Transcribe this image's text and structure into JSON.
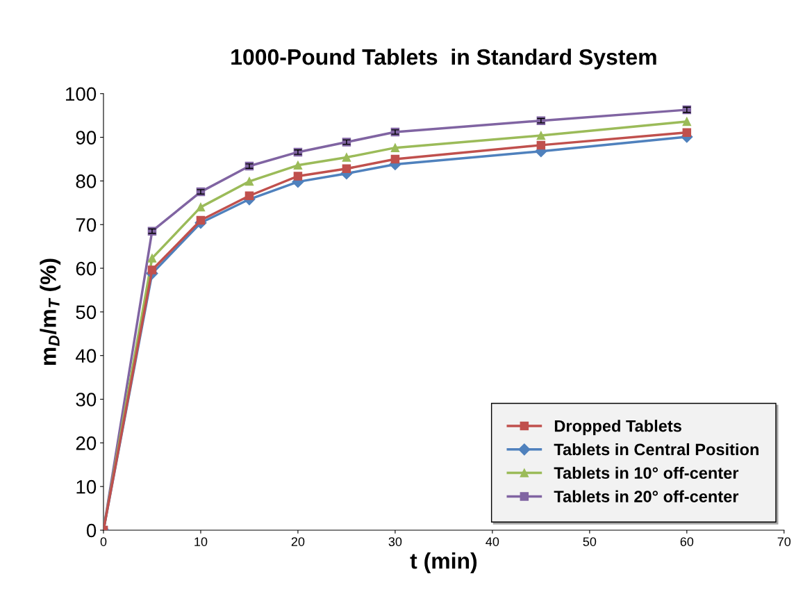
{
  "chart_data": {
    "type": "line",
    "title": "1000-Pound Tablets  in Standard System",
    "xlabel": "t (min)",
    "ylabel": "m$_{D}$/m$_{T}$ (%)",
    "x": [
      0,
      5,
      10,
      15,
      20,
      25,
      30,
      45,
      60
    ],
    "series": [
      {
        "name": "Dropped Tablets",
        "color": "#c0504d",
        "marker": "square",
        "values": [
          0,
          59.6,
          71.0,
          76.6,
          81.1,
          82.8,
          85.0,
          88.2,
          91.1
        ]
      },
      {
        "name": "Tablets in Central Position",
        "color": "#4f81bd",
        "marker": "diamond",
        "values": [
          0,
          58.8,
          70.4,
          75.8,
          79.8,
          81.7,
          83.8,
          86.8,
          90.1
        ]
      },
      {
        "name": "Tablets in 10° off-center",
        "color": "#9bbb59",
        "marker": "triangle",
        "values": [
          0,
          62.3,
          74.0,
          79.9,
          83.6,
          85.4,
          87.6,
          90.4,
          93.6
        ]
      },
      {
        "name": "Tablets in 20° off-center",
        "color": "#8064a2",
        "marker": "square",
        "values": [
          0,
          68.5,
          77.5,
          83.4,
          86.6,
          88.9,
          91.2,
          93.8,
          96.3
        ],
        "errors": [
          null,
          0.5,
          0.5,
          0.5,
          0.5,
          0.5,
          0.5,
          0.5,
          0.6
        ]
      }
    ],
    "xlim": [
      0,
      70
    ],
    "xticks": [
      0,
      10,
      20,
      30,
      40,
      50,
      60,
      70
    ],
    "ylim": [
      0,
      100
    ],
    "yticks": [
      0,
      10,
      20,
      30,
      40,
      50,
      60,
      70,
      80,
      90,
      100
    ],
    "grid": false,
    "legend": "bottom right"
  }
}
